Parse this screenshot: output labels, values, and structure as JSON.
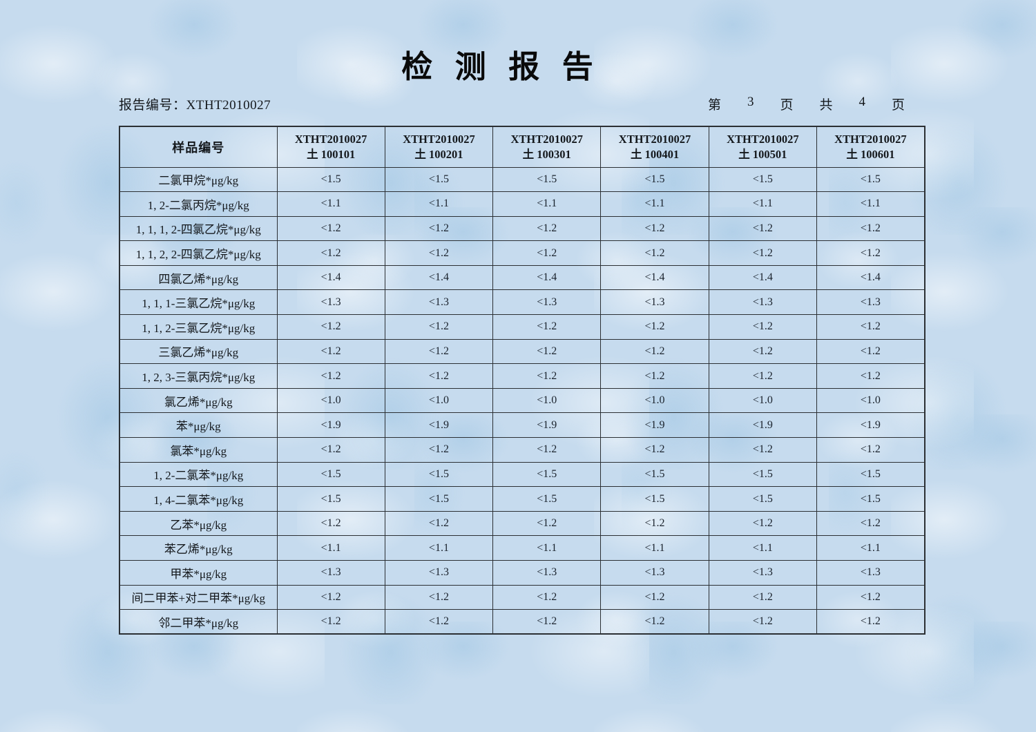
{
  "title": "检 测 报 告",
  "report": {
    "label": "报告编号：",
    "value": "XTHT2010027"
  },
  "pagination": [
    "第",
    "3",
    "页",
    "共",
    "4",
    "页"
  ],
  "table": {
    "corner_header": "样品编号",
    "columns": [
      {
        "line1": "XTHT2010027",
        "line2": "土 100101"
      },
      {
        "line1": "XTHT2010027",
        "line2": "土 100201"
      },
      {
        "line1": "XTHT2010027",
        "line2": "土 100301"
      },
      {
        "line1": "XTHT2010027",
        "line2": "土 100401"
      },
      {
        "line1": "XTHT2010027",
        "line2": "土 100501"
      },
      {
        "line1": "XTHT2010027",
        "line2": "土 100601"
      }
    ],
    "rows": [
      {
        "label": "二氯甲烷*μg/kg",
        "values": [
          "<1.5",
          "<1.5",
          "<1.5",
          "<1.5",
          "<1.5",
          "<1.5"
        ]
      },
      {
        "label": "1, 2-二氯丙烷*μg/kg",
        "values": [
          "<1.1",
          "<1.1",
          "<1.1",
          "<1.1",
          "<1.1",
          "<1.1"
        ]
      },
      {
        "label": "1, 1, 1, 2-四氯乙烷*μg/kg",
        "values": [
          "<1.2",
          "<1.2",
          "<1.2",
          "<1.2",
          "<1.2",
          "<1.2"
        ]
      },
      {
        "label": "1, 1, 2, 2-四氯乙烷*μg/kg",
        "values": [
          "<1.2",
          "<1.2",
          "<1.2",
          "<1.2",
          "<1.2",
          "<1.2"
        ]
      },
      {
        "label": "四氯乙烯*μg/kg",
        "values": [
          "<1.4",
          "<1.4",
          "<1.4",
          "<1.4",
          "<1.4",
          "<1.4"
        ]
      },
      {
        "label": "1, 1, 1-三氯乙烷*μg/kg",
        "values": [
          "<1.3",
          "<1.3",
          "<1.3",
          "<1.3",
          "<1.3",
          "<1.3"
        ]
      },
      {
        "label": "1, 1, 2-三氯乙烷*μg/kg",
        "values": [
          "<1.2",
          "<1.2",
          "<1.2",
          "<1.2",
          "<1.2",
          "<1.2"
        ]
      },
      {
        "label": "三氯乙烯*μg/kg",
        "values": [
          "<1.2",
          "<1.2",
          "<1.2",
          "<1.2",
          "<1.2",
          "<1.2"
        ]
      },
      {
        "label": "1, 2, 3-三氯丙烷*μg/kg",
        "values": [
          "<1.2",
          "<1.2",
          "<1.2",
          "<1.2",
          "<1.2",
          "<1.2"
        ]
      },
      {
        "label": "氯乙烯*μg/kg",
        "values": [
          "<1.0",
          "<1.0",
          "<1.0",
          "<1.0",
          "<1.0",
          "<1.0"
        ]
      },
      {
        "label": "苯*μg/kg",
        "values": [
          "<1.9",
          "<1.9",
          "<1.9",
          "<1.9",
          "<1.9",
          "<1.9"
        ]
      },
      {
        "label": "氯苯*μg/kg",
        "values": [
          "<1.2",
          "<1.2",
          "<1.2",
          "<1.2",
          "<1.2",
          "<1.2"
        ]
      },
      {
        "label": "1, 2-二氯苯*μg/kg",
        "values": [
          "<1.5",
          "<1.5",
          "<1.5",
          "<1.5",
          "<1.5",
          "<1.5"
        ]
      },
      {
        "label": "1, 4-二氯苯*μg/kg",
        "values": [
          "<1.5",
          "<1.5",
          "<1.5",
          "<1.5",
          "<1.5",
          "<1.5"
        ]
      },
      {
        "label": "乙苯*μg/kg",
        "values": [
          "<1.2",
          "<1.2",
          "<1.2",
          "<1.2",
          "<1.2",
          "<1.2"
        ]
      },
      {
        "label": "苯乙烯*μg/kg",
        "values": [
          "<1.1",
          "<1.1",
          "<1.1",
          "<1.1",
          "<1.1",
          "<1.1"
        ]
      },
      {
        "label": "甲苯*μg/kg",
        "values": [
          "<1.3",
          "<1.3",
          "<1.3",
          "<1.3",
          "<1.3",
          "<1.3"
        ]
      },
      {
        "label": "间二甲苯+对二甲苯*μg/kg",
        "values": [
          "<1.2",
          "<1.2",
          "<1.2",
          "<1.2",
          "<1.2",
          "<1.2"
        ]
      },
      {
        "label": "邻二甲苯*μg/kg",
        "values": [
          "<1.2",
          "<1.2",
          "<1.2",
          "<1.2",
          "<1.2",
          "<1.2"
        ]
      }
    ]
  },
  "colors": {
    "paper": "#c6dbee",
    "paper-dark": "#a9cbe4",
    "paper-light": "#e4eef7",
    "line": "#2b2f33",
    "ink": "#14181c"
  }
}
